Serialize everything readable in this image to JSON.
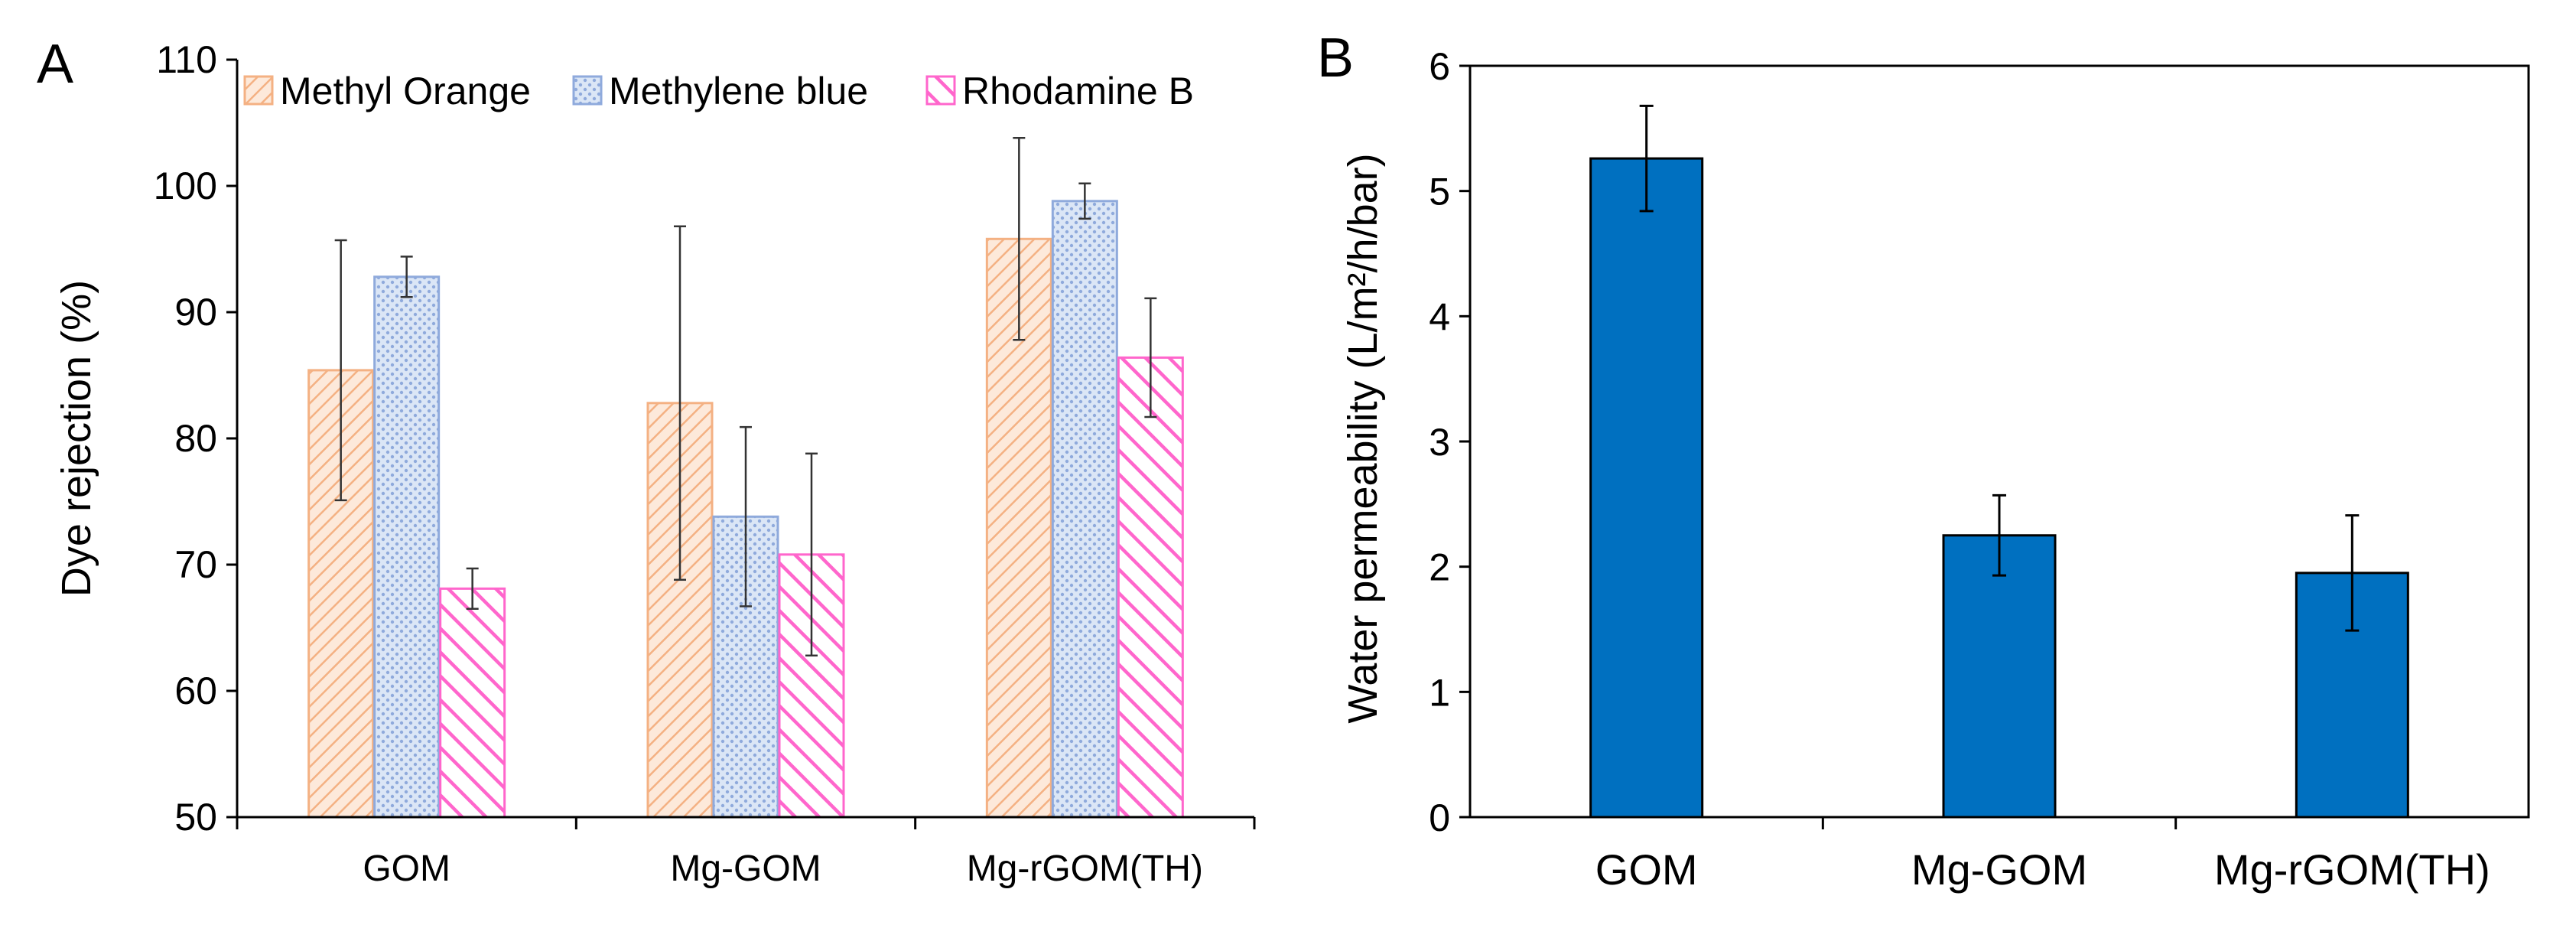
{
  "chart_data": [
    {
      "panel": "A",
      "type": "bar",
      "title": "",
      "xlabel": "",
      "ylabel": "Dye rejection (%)",
      "ylim": [
        50,
        110
      ],
      "yticks": [
        50,
        60,
        70,
        80,
        90,
        100,
        110
      ],
      "categories": [
        "GOM",
        "Mg-GOM",
        "Mg-rGOM(TH)"
      ],
      "legend_position": "top",
      "series": [
        {
          "name": "Methyl Orange",
          "color": "#f4b183",
          "pattern": "diagonal-hatch",
          "values": [
            85.4,
            82.8,
            95.8
          ],
          "errors": [
            10.3,
            14.0,
            8.0
          ]
        },
        {
          "name": "Methylene blue",
          "color": "#8faadc",
          "pattern": "dotted",
          "values": [
            92.8,
            73.8,
            98.8
          ],
          "errors": [
            1.6,
            7.1,
            1.4
          ]
        },
        {
          "name": "Rhodamine B",
          "color": "#ff66cc",
          "pattern": "diagonal-stripe",
          "values": [
            68.1,
            70.8,
            86.4
          ],
          "errors": [
            1.6,
            8.0,
            4.7
          ]
        }
      ]
    },
    {
      "panel": "B",
      "type": "bar",
      "title": "",
      "xlabel": "",
      "ylabel": "Water permeability (L/m²/h/bar)",
      "ylim": [
        0,
        6
      ],
      "yticks": [
        0,
        1,
        2,
        3,
        4,
        5,
        6
      ],
      "categories": [
        "GOM",
        "Mg-GOM",
        "Mg-rGOM(TH)"
      ],
      "series": [
        {
          "name": "Water permeability",
          "color": "#0070c0",
          "values": [
            5.26,
            2.25,
            1.95
          ],
          "errors": [
            0.42,
            0.32,
            0.46
          ]
        }
      ]
    }
  ]
}
